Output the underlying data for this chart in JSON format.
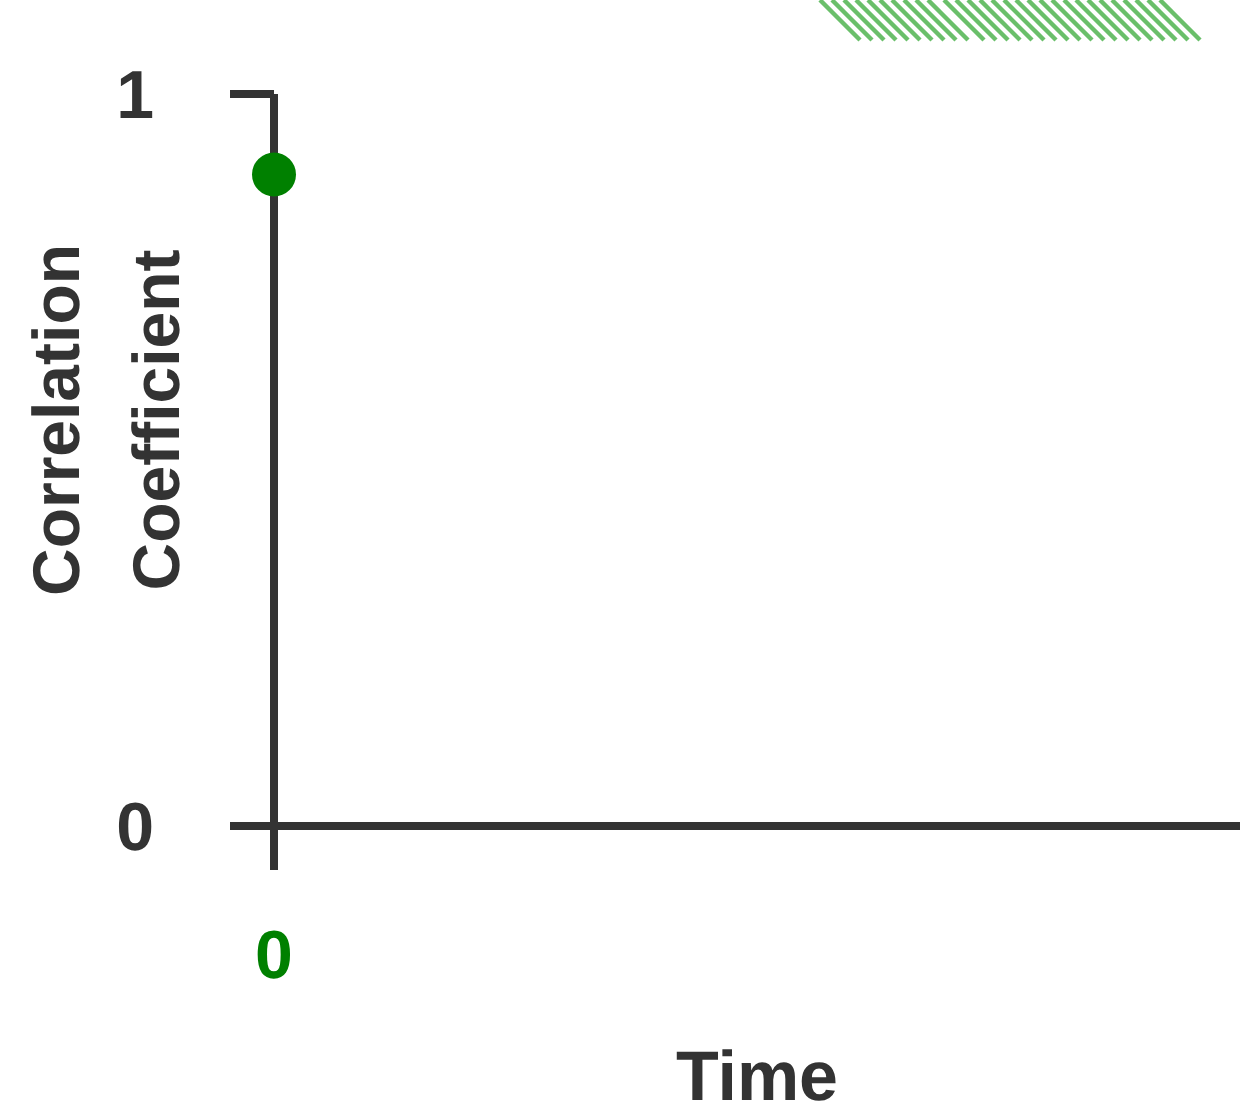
{
  "chart_data": {
    "type": "scatter",
    "xlabel": "Time",
    "ylabel": "Correlation Coefficient",
    "categories": [
      "0"
    ],
    "series": [
      {
        "color": "#008000",
        "values": [
          0.89
        ]
      }
    ],
    "ylim": [
      0,
      1
    ],
    "yticks": [
      0,
      1
    ],
    "marker": "circle"
  }
}
